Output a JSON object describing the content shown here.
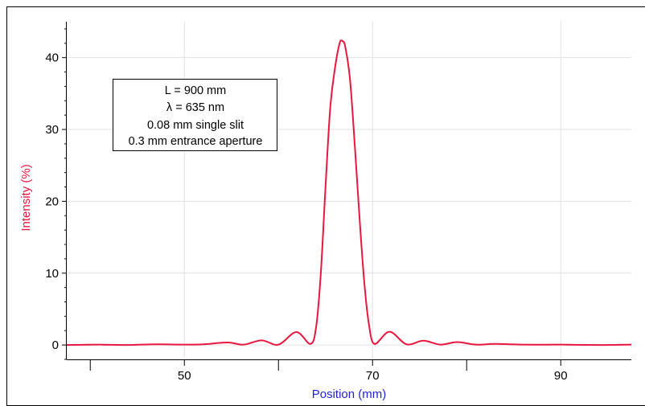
{
  "chart_data": {
    "type": "line",
    "title": "",
    "xlabel": "Position (mm)",
    "ylabel": "Intensity (%)",
    "xlim": [
      37.5,
      97.5
    ],
    "ylim": [
      -2,
      45
    ],
    "x_ticks": [
      50,
      70,
      90
    ],
    "x_minor_ticks": [
      40,
      60,
      80
    ],
    "y_ticks": [
      0,
      10,
      20,
      30,
      40
    ],
    "grid": true,
    "colors": {
      "series": "#e8173f",
      "xlabel": "#1f1fd6",
      "ylabel": "#e8173f",
      "grid": "#e2e2e2"
    },
    "annotation": {
      "lines": [
        "L = 900 mm",
        "λ = 635 nm",
        "0.08 mm single slit",
        "0.3 mm entrance aperture"
      ]
    },
    "series": [
      {
        "x": [
          37.5,
          41.0,
          44.0,
          47.0,
          50.0,
          52.0,
          54.6,
          56.3,
          58.2,
          60.0,
          61.9,
          63.4,
          64.0,
          64.5,
          65.0,
          65.5,
          66.0,
          66.5,
          66.8,
          67.1,
          67.6,
          68.1,
          68.6,
          69.1,
          69.6,
          70.2,
          71.8,
          73.6,
          75.4,
          77.2,
          79.0,
          81.0,
          83.0,
          86.0,
          90.0,
          94.0,
          97.5
        ],
        "values": [
          0.0,
          0.05,
          0.0,
          0.1,
          0.05,
          0.1,
          0.35,
          0.05,
          0.65,
          0.05,
          1.8,
          0.15,
          2.5,
          10.0,
          22.0,
          33.0,
          38.5,
          42.0,
          42.3,
          41.5,
          37.0,
          28.0,
          18.0,
          9.0,
          3.0,
          0.15,
          1.85,
          0.1,
          0.6,
          0.05,
          0.4,
          0.05,
          0.15,
          0.05,
          0.05,
          0.0,
          0.05
        ]
      }
    ]
  }
}
